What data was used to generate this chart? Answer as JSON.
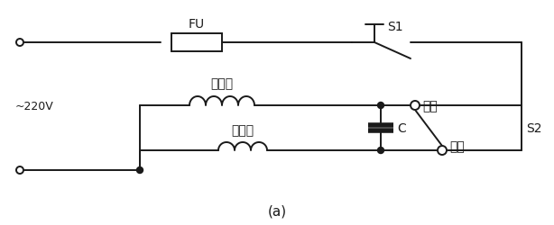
{
  "bg_color": "#ffffff",
  "line_color": "#1a1a1a",
  "title": "(a)",
  "label_220v": "~220V",
  "label_fu": "FU",
  "label_s1": "S1",
  "label_s2": "S2",
  "label_main": "主绕组",
  "label_aux": "副绕组",
  "label_c": "C",
  "label_forward": "正转",
  "label_reverse": "反转",
  "fig_width": 6.14,
  "fig_height": 2.51
}
